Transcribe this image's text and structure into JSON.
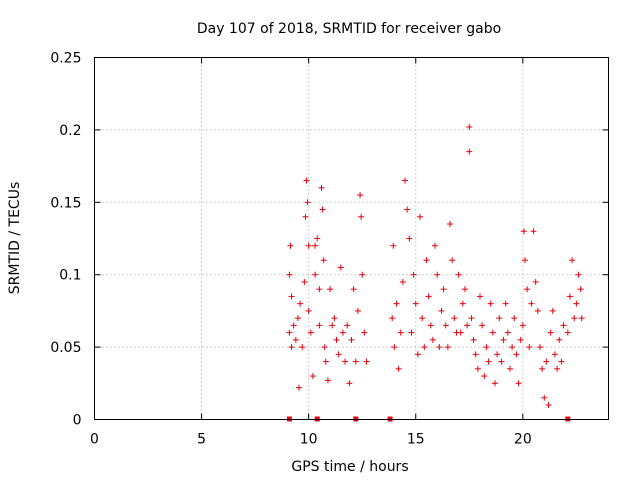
{
  "chart_data": {
    "type": "scatter",
    "title": "Day 107 of 2018, SRMTID for receiver gabo",
    "xlabel": "GPS time / hours",
    "ylabel": "SRMTID / TECUs",
    "xlim": [
      0,
      24
    ],
    "ylim": [
      0,
      0.25
    ],
    "x_ticks": [
      0,
      5,
      10,
      15,
      20
    ],
    "x_tick_labels": [
      "0",
      "5",
      "10",
      "15",
      "20"
    ],
    "y_ticks": [
      0,
      0.05,
      0.1,
      0.15,
      0.2,
      0.25
    ],
    "y_tick_labels": [
      "0",
      "0.05",
      "0.1",
      "0.15",
      "0.2",
      "0.25"
    ],
    "grid": true,
    "marker": "+",
    "color": "#e8000b",
    "data_extent_hours": [
      9.1,
      22.8
    ],
    "gap_markers_hours": [
      9.1,
      10.4,
      12.2,
      13.8,
      22.1
    ],
    "series": [
      {
        "name": "SRMTID",
        "points": [
          [
            9.1,
            0.06
          ],
          [
            9.1,
            0.1
          ],
          [
            9.15,
            0.12
          ],
          [
            9.2,
            0.05
          ],
          [
            9.2,
            0.085
          ],
          [
            9.3,
            0.065
          ],
          [
            9.4,
            0.055
          ],
          [
            9.5,
            0.07
          ],
          [
            9.55,
            0.022
          ],
          [
            9.6,
            0.08
          ],
          [
            9.7,
            0.05
          ],
          [
            9.8,
            0.095
          ],
          [
            9.85,
            0.14
          ],
          [
            9.9,
            0.165
          ],
          [
            9.95,
            0.15
          ],
          [
            10.0,
            0.12
          ],
          [
            10.0,
            0.075
          ],
          [
            10.1,
            0.06
          ],
          [
            10.2,
            0.03
          ],
          [
            10.3,
            0.1
          ],
          [
            10.3,
            0.12
          ],
          [
            10.4,
            0.125
          ],
          [
            10.5,
            0.09
          ],
          [
            10.5,
            0.065
          ],
          [
            10.6,
            0.16
          ],
          [
            10.65,
            0.145
          ],
          [
            10.7,
            0.11
          ],
          [
            10.75,
            0.05
          ],
          [
            10.8,
            0.04
          ],
          [
            10.9,
            0.027
          ],
          [
            11.0,
            0.09
          ],
          [
            11.1,
            0.065
          ],
          [
            11.2,
            0.07
          ],
          [
            11.3,
            0.055
          ],
          [
            11.4,
            0.045
          ],
          [
            11.5,
            0.105
          ],
          [
            11.6,
            0.06
          ],
          [
            11.7,
            0.04
          ],
          [
            11.8,
            0.065
          ],
          [
            11.9,
            0.025
          ],
          [
            12.0,
            0.055
          ],
          [
            12.1,
            0.09
          ],
          [
            12.2,
            0.04
          ],
          [
            12.3,
            0.075
          ],
          [
            12.4,
            0.155
          ],
          [
            12.45,
            0.14
          ],
          [
            12.5,
            0.1
          ],
          [
            12.6,
            0.06
          ],
          [
            12.7,
            0.04
          ],
          [
            13.9,
            0.07
          ],
          [
            13.95,
            0.12
          ],
          [
            14.0,
            0.05
          ],
          [
            14.1,
            0.08
          ],
          [
            14.2,
            0.035
          ],
          [
            14.3,
            0.06
          ],
          [
            14.4,
            0.095
          ],
          [
            14.5,
            0.165
          ],
          [
            14.6,
            0.145
          ],
          [
            14.7,
            0.125
          ],
          [
            14.8,
            0.06
          ],
          [
            14.9,
            0.1
          ],
          [
            15.0,
            0.08
          ],
          [
            15.1,
            0.045
          ],
          [
            15.2,
            0.14
          ],
          [
            15.3,
            0.07
          ],
          [
            15.4,
            0.05
          ],
          [
            15.5,
            0.11
          ],
          [
            15.6,
            0.085
          ],
          [
            15.7,
            0.065
          ],
          [
            15.8,
            0.055
          ],
          [
            15.9,
            0.12
          ],
          [
            16.0,
            0.1
          ],
          [
            16.1,
            0.05
          ],
          [
            16.2,
            0.075
          ],
          [
            16.3,
            0.09
          ],
          [
            16.4,
            0.065
          ],
          [
            16.5,
            0.05
          ],
          [
            16.6,
            0.135
          ],
          [
            16.7,
            0.11
          ],
          [
            16.8,
            0.07
          ],
          [
            16.9,
            0.06
          ],
          [
            17.0,
            0.1
          ],
          [
            17.1,
            0.06
          ],
          [
            17.2,
            0.08
          ],
          [
            17.3,
            0.09
          ],
          [
            17.4,
            0.065
          ],
          [
            17.5,
            0.202
          ],
          [
            17.5,
            0.185
          ],
          [
            17.6,
            0.07
          ],
          [
            17.7,
            0.055
          ],
          [
            17.8,
            0.045
          ],
          [
            17.9,
            0.035
          ],
          [
            18.0,
            0.085
          ],
          [
            18.1,
            0.065
          ],
          [
            18.2,
            0.03
          ],
          [
            18.3,
            0.05
          ],
          [
            18.4,
            0.04
          ],
          [
            18.5,
            0.08
          ],
          [
            18.6,
            0.06
          ],
          [
            18.7,
            0.025
          ],
          [
            18.8,
            0.045
          ],
          [
            18.9,
            0.07
          ],
          [
            19.0,
            0.04
          ],
          [
            19.1,
            0.055
          ],
          [
            19.2,
            0.08
          ],
          [
            19.3,
            0.06
          ],
          [
            19.4,
            0.035
          ],
          [
            19.5,
            0.05
          ],
          [
            19.6,
            0.07
          ],
          [
            19.7,
            0.045
          ],
          [
            19.8,
            0.025
          ],
          [
            19.9,
            0.055
          ],
          [
            20.0,
            0.065
          ],
          [
            20.05,
            0.13
          ],
          [
            20.1,
            0.11
          ],
          [
            20.2,
            0.09
          ],
          [
            20.3,
            0.05
          ],
          [
            20.4,
            0.08
          ],
          [
            20.5,
            0.13
          ],
          [
            20.6,
            0.095
          ],
          [
            20.7,
            0.075
          ],
          [
            20.8,
            0.05
          ],
          [
            20.9,
            0.035
          ],
          [
            21.0,
            0.015
          ],
          [
            21.1,
            0.04
          ],
          [
            21.2,
            0.01
          ],
          [
            21.3,
            0.06
          ],
          [
            21.4,
            0.075
          ],
          [
            21.5,
            0.045
          ],
          [
            21.6,
            0.035
          ],
          [
            21.7,
            0.055
          ],
          [
            21.8,
            0.04
          ],
          [
            21.9,
            0.065
          ],
          [
            22.1,
            0.06
          ],
          [
            22.2,
            0.085
          ],
          [
            22.3,
            0.11
          ],
          [
            22.4,
            0.07
          ],
          [
            22.5,
            0.08
          ],
          [
            22.6,
            0.1
          ],
          [
            22.7,
            0.09
          ],
          [
            22.75,
            0.07
          ]
        ]
      }
    ]
  }
}
